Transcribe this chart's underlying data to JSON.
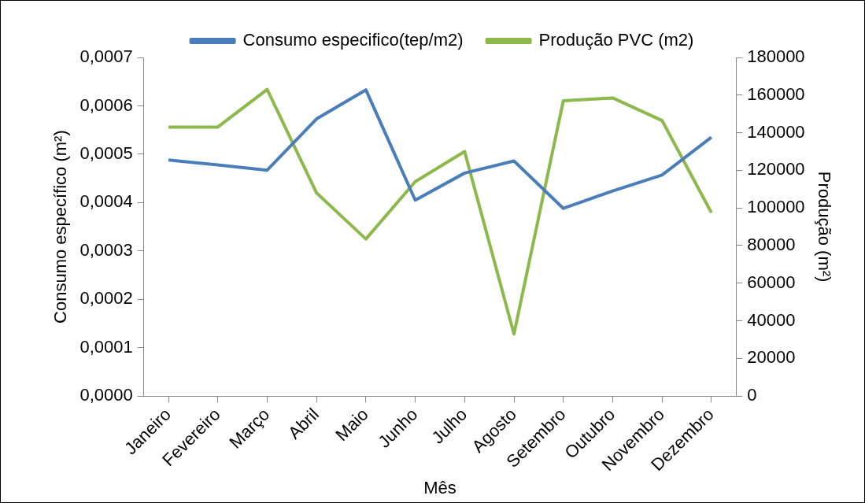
{
  "chart_data": {
    "type": "line",
    "xlabel": "Mês",
    "ylabel": "Consumo específico (m²)",
    "y2label": "Produção (m²)",
    "categories": [
      "Janeiro",
      "Fevereiro",
      "Março",
      "Abril",
      "Maio",
      "Junho",
      "Julho",
      "Agosto",
      "Setembro",
      "Outubro",
      "Novembro",
      "Dezembro"
    ],
    "series": [
      {
        "name": "Consumo especifico(tep/m2)",
        "color": "#4a7ebb",
        "values": [
          0.000488,
          0.000478,
          0.000467,
          0.000573,
          0.000633,
          0.000405,
          0.000461,
          0.000486,
          0.000388,
          0.000424,
          0.000457,
          0.000535
        ]
      },
      {
        "name": "Produção PVC (m2)",
        "color": "#8cb84c",
        "axis": "y2",
        "values": [
          143000,
          143000,
          163000,
          108000,
          83500,
          114000,
          130000,
          33000,
          157000,
          158500,
          146500,
          97500
        ]
      }
    ],
    "ylim": [
      0,
      0.0007
    ],
    "yticks": [
      {
        "value": 0,
        "label": "0,0000"
      },
      {
        "value": 0.0001,
        "label": "0,0001"
      },
      {
        "value": 0.0002,
        "label": "0,0002"
      },
      {
        "value": 0.0003,
        "label": "0,0003"
      },
      {
        "value": 0.0004,
        "label": "0,0004"
      },
      {
        "value": 0.0005,
        "label": "0,0005"
      },
      {
        "value": 0.0006,
        "label": "0,0006"
      },
      {
        "value": 0.0007,
        "label": "0,0007"
      }
    ],
    "y2lim": [
      0,
      180000
    ],
    "y2ticks": [
      0,
      20000,
      40000,
      60000,
      80000,
      100000,
      120000,
      140000,
      160000,
      180000
    ],
    "legend": "top",
    "grid": false,
    "marker": "none",
    "line_style": "solid"
  }
}
